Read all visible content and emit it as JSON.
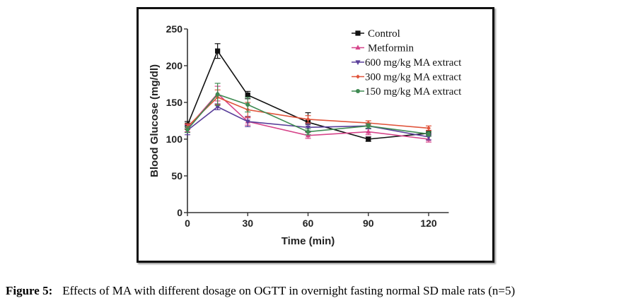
{
  "chart_data": {
    "type": "line",
    "title": "",
    "xlabel": "Time (min)",
    "ylabel": "Blood Glucose (mg/dl)",
    "x": [
      0,
      15,
      30,
      60,
      90,
      120
    ],
    "xticks": [
      0,
      30,
      60,
      90,
      120
    ],
    "xtick_labels": [
      "0",
      "30",
      "60",
      "90",
      "120"
    ],
    "yticks": [
      0,
      50,
      100,
      150,
      200,
      250
    ],
    "ytick_labels": [
      "0",
      "50",
      "100",
      "150",
      "200",
      "250"
    ],
    "xlim": [
      0,
      130
    ],
    "ylim": [
      0,
      250
    ],
    "grid": false,
    "legend_position": "top-right",
    "series": [
      {
        "name": "Control",
        "color": "#111111",
        "marker": "square",
        "values": [
          119,
          220,
          160,
          123,
          100,
          108
        ],
        "errors": [
          5,
          10,
          5,
          13,
          3,
          4
        ]
      },
      {
        "name": "Metformin",
        "color": "#d6448a",
        "marker": "triangle-up",
        "values": [
          115,
          162,
          124,
          105,
          110,
          100
        ],
        "errors": [
          5,
          10,
          5,
          4,
          4,
          4
        ]
      },
      {
        "name": "600 mg/kg MA extract",
        "color": "#5a3f9a",
        "marker": "triangle-down",
        "values": [
          112,
          144,
          124,
          116,
          118,
          103
        ],
        "errors": [
          6,
          4,
          7,
          5,
          4,
          4
        ]
      },
      {
        "name": "300 mg/kg MA extract",
        "color": "#e0533a",
        "marker": "diamond",
        "values": [
          117,
          157,
          140,
          127,
          122,
          115
        ],
        "errors": [
          4,
          10,
          10,
          5,
          3,
          3
        ]
      },
      {
        "name": "150 mg/kg MA extract",
        "color": "#3f8a52",
        "marker": "circle",
        "values": [
          113,
          161,
          147,
          110,
          118,
          107
        ],
        "errors": [
          4,
          15,
          10,
          4,
          3,
          3
        ]
      }
    ]
  },
  "caption": {
    "label": "Figure 5",
    "separator": ":",
    "text": "Effects of MA with different dosage on OGTT in overnight fasting normal SD male rats (n=5)"
  }
}
